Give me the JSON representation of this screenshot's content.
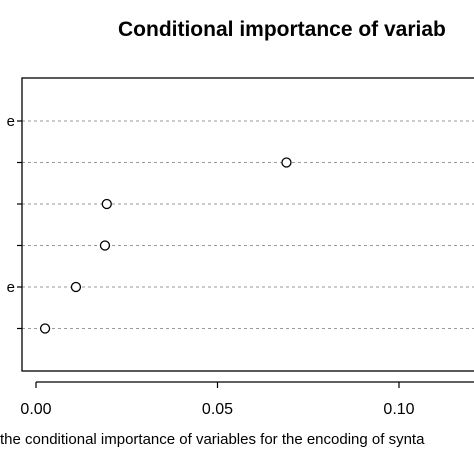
{
  "chart_data": {
    "type": "scatter",
    "title": "Conditional importance of variab",
    "xlabel": "",
    "ylabel": "",
    "xlim": [
      -0.005,
      0.12
    ],
    "x_ticks": [
      0.0,
      0.05,
      0.1
    ],
    "x_tick_labels": [
      "0.00",
      "0.05",
      "0.10"
    ],
    "grid": "horizontal dotted",
    "y_labels_visible": [
      {
        "row": 6,
        "text": "e"
      },
      {
        "row": 2,
        "text": "e"
      }
    ],
    "points": [
      {
        "row": 5,
        "x": 0.069
      },
      {
        "row": 4,
        "x": 0.0195
      },
      {
        "row": 3,
        "x": 0.019
      },
      {
        "row": 2,
        "x": 0.011
      },
      {
        "row": 1,
        "x": 0.0025
      }
    ],
    "rows": 6
  },
  "caption": "the conditional importance of variables for the encoding of synta"
}
